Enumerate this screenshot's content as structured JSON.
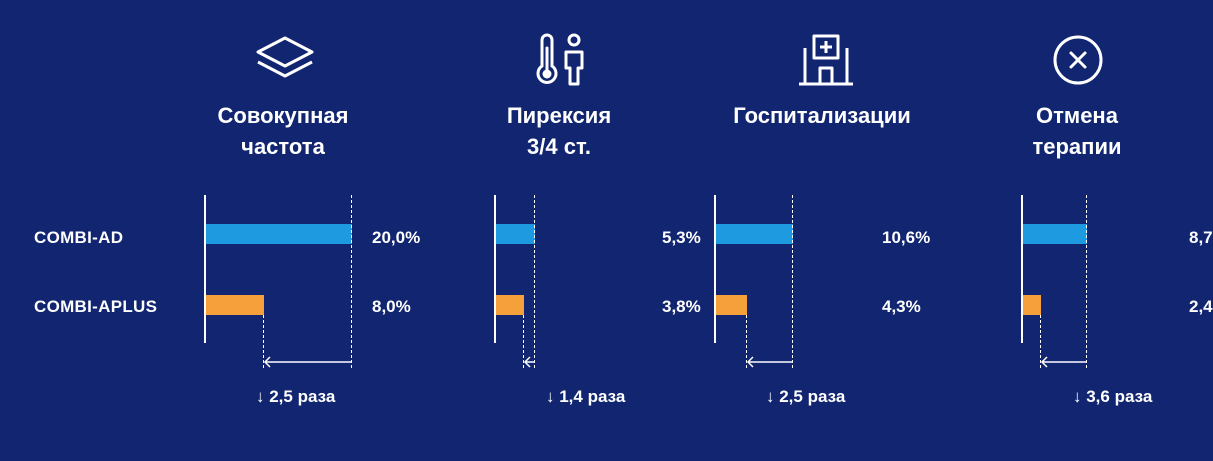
{
  "colors": {
    "background": "#112570",
    "combi_ad": "#1E9BE0",
    "combi_aplus": "#F5A03A",
    "text": "#FFFFFF"
  },
  "chart_data": {
    "type": "bar",
    "orientation": "horizontal",
    "series": [
      {
        "name": "COMBI-AD",
        "color": "#1E9BE0"
      },
      {
        "name": "COMBI-APLUS",
        "color": "#F5A03A"
      }
    ],
    "groups": [
      {
        "icon": "layers-icon",
        "title_lines": [
          "Совокупная",
          "частота"
        ],
        "values": [
          20.0,
          8.0
        ],
        "value_labels": [
          "20,0%",
          "8,0%"
        ],
        "ratio": "↓ 2,5 раза"
      },
      {
        "icon": "thermometer-person-icon",
        "title_lines": [
          "Пирексия",
          "3/4 ст."
        ],
        "values": [
          5.3,
          3.8
        ],
        "value_labels": [
          "5,3%",
          "3,8%"
        ],
        "ratio": "↓ 1,4 раза"
      },
      {
        "icon": "hospital-icon",
        "title_lines": [
          "Госпитализации"
        ],
        "values": [
          10.6,
          4.3
        ],
        "value_labels": [
          "10,6%",
          "4,3%"
        ],
        "ratio": "↓ 2,5 раза"
      },
      {
        "icon": "cancel-icon",
        "title_lines": [
          "Отмена",
          "терапии"
        ],
        "values": [
          8.7,
          2.4
        ],
        "value_labels": [
          "8,7",
          "2,4"
        ],
        "ratio": "↓ 3,6 раза"
      }
    ]
  }
}
